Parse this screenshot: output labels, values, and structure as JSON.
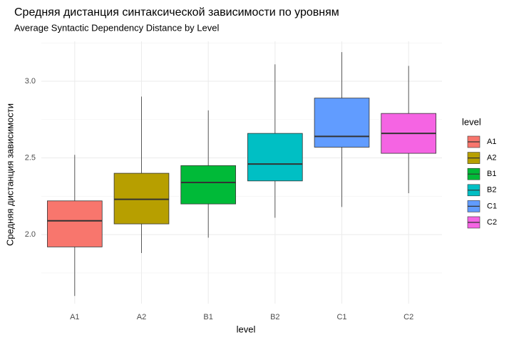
{
  "chart_data": {
    "type": "boxplot",
    "title": "Средняя дистанция синтаксической зависимости по уровням",
    "subtitle": "Average Syntactic Dependency Distance by Level",
    "x_label": "level",
    "y_label": "Средняя дистанция зависимости",
    "legend_title": "level",
    "legend_position": "right",
    "categories": [
      "A1",
      "A2",
      "B1",
      "B2",
      "C1",
      "C2"
    ],
    "colors": [
      "#F8766D",
      "#B79F00",
      "#00BA38",
      "#00BFC4",
      "#619CFF",
      "#F564E3"
    ],
    "whisker_low": [
      1.6,
      1.88,
      1.98,
      2.11,
      2.18,
      2.27
    ],
    "q1": [
      1.92,
      2.07,
      2.2,
      2.35,
      2.57,
      2.53
    ],
    "median": [
      2.09,
      2.23,
      2.34,
      2.46,
      2.64,
      2.66
    ],
    "q3": [
      2.22,
      2.4,
      2.45,
      2.66,
      2.89,
      2.79
    ],
    "whisker_high": [
      2.52,
      2.9,
      2.81,
      3.11,
      3.19,
      3.1
    ],
    "ylim": [
      1.55,
      3.26
    ],
    "yticks": [
      {
        "value": 2,
        "label": "2.0"
      },
      {
        "value": 2.5,
        "label": "2.5"
      },
      {
        "value": 3,
        "label": "3.0"
      }
    ],
    "y_minor_grid": [
      1.75,
      2.25,
      2.75,
      3.25
    ],
    "grid": true
  }
}
